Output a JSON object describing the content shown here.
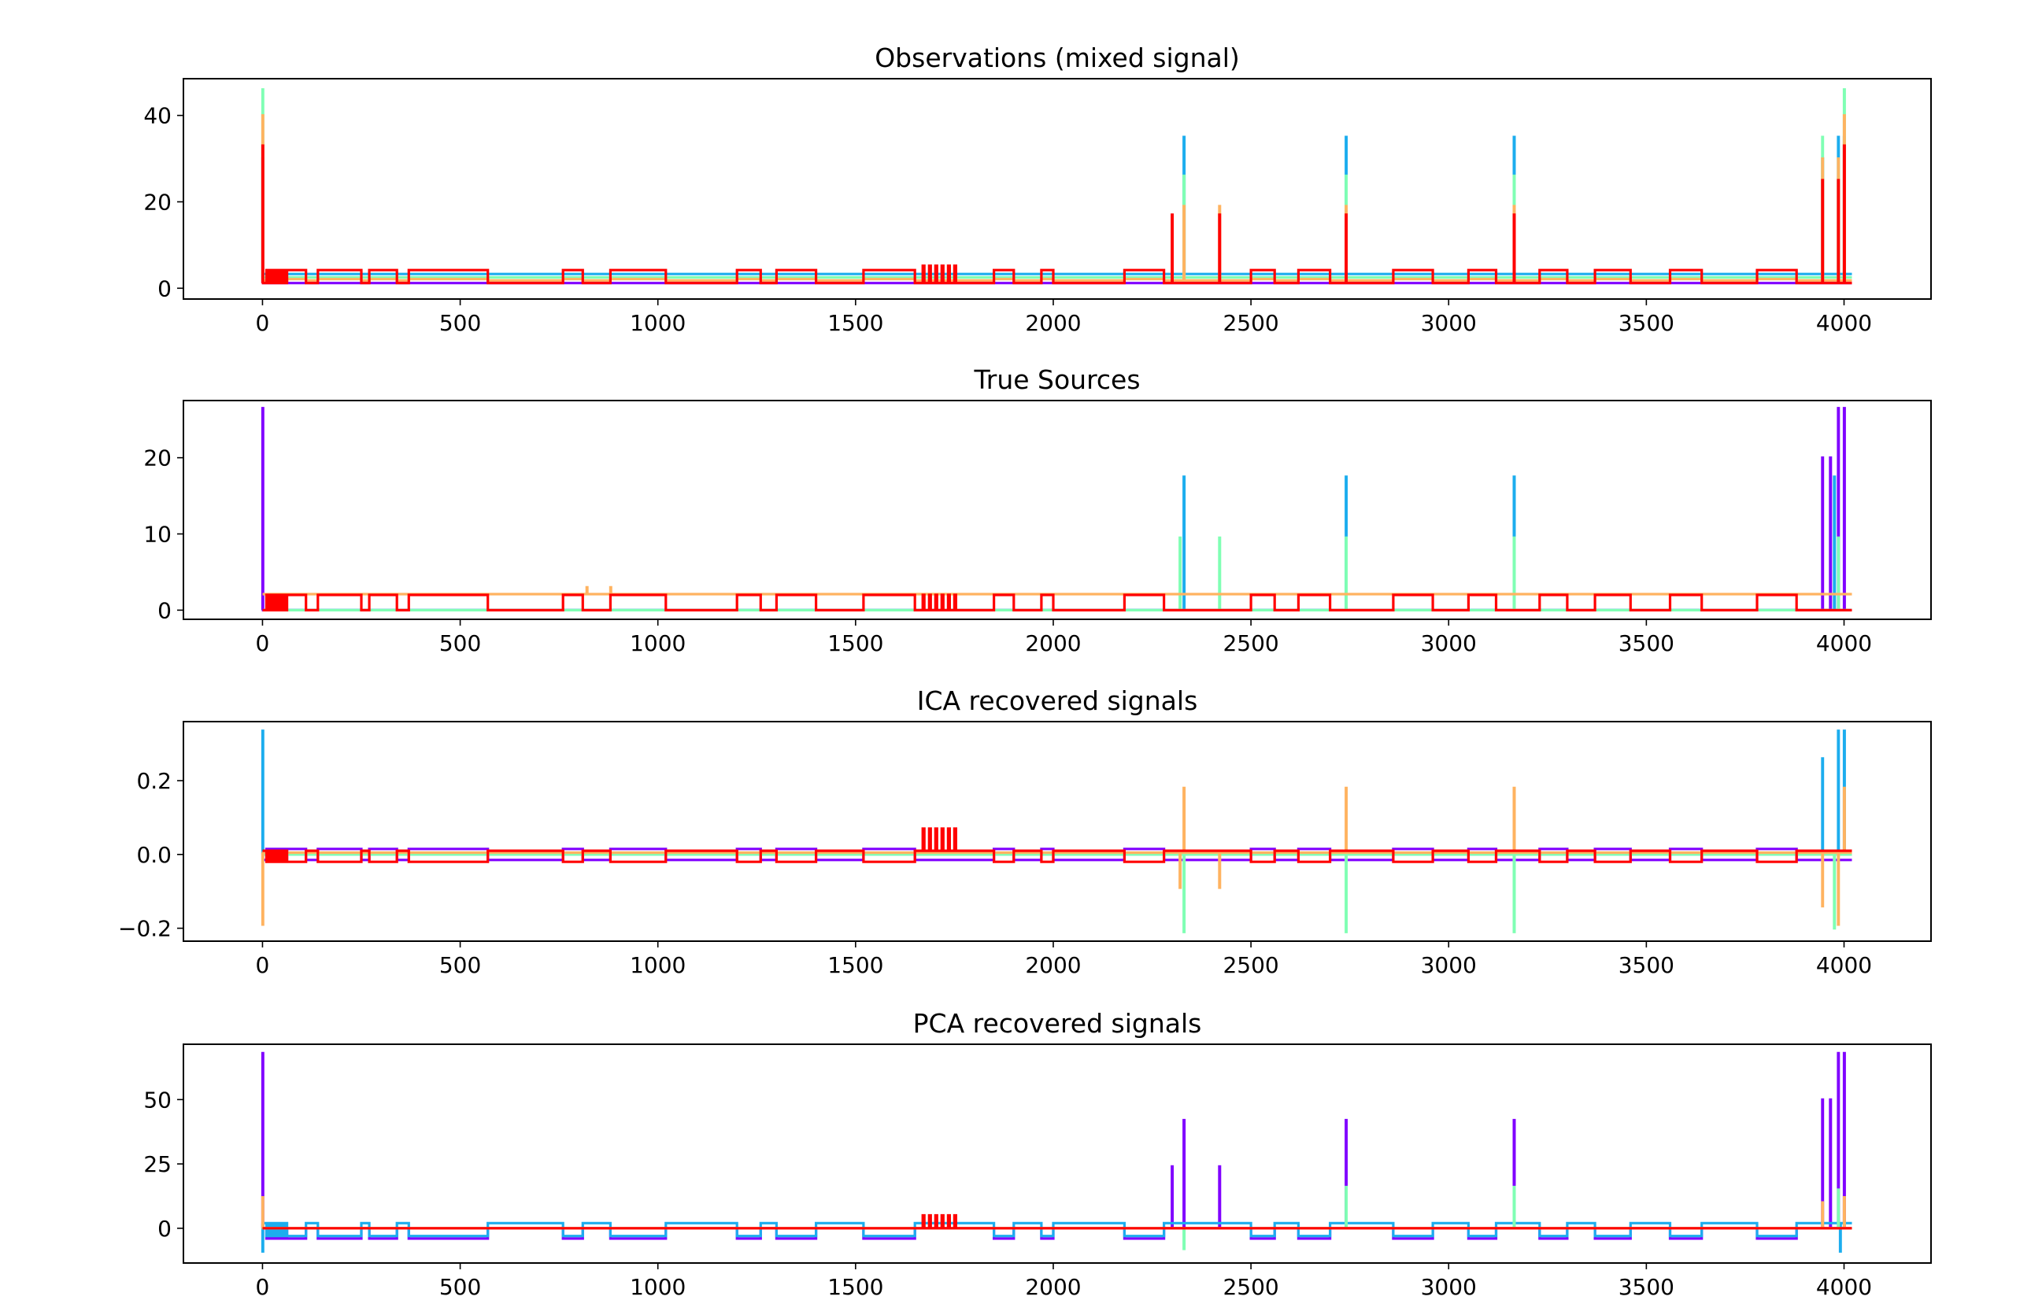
{
  "chart_data": [
    {
      "type": "line",
      "title": "Observations (mixed signal)",
      "xlim": [
        -200,
        4220
      ],
      "ylim": [
        -2.5,
        48.5
      ],
      "xticks": [
        0,
        500,
        1000,
        1500,
        2000,
        2500,
        3000,
        3500,
        4000
      ],
      "yticks": [
        0,
        20,
        40
      ],
      "ytick_labels": [
        "0",
        "20",
        "40"
      ],
      "series": [
        {
          "color": "#8000ff",
          "base": 1.2,
          "step": 0,
          "noise": 0,
          "spikes": [
            [
              0,
              3
            ],
            [
              2330,
              2
            ],
            [
              2740,
              2
            ],
            [
              3165,
              2
            ],
            [
              3945,
              3
            ],
            [
              3985,
              3
            ],
            [
              4000,
              3
            ]
          ]
        },
        {
          "color": "#1cadee",
          "base": 3.3,
          "step": 0,
          "noise": 0,
          "spikes": [
            [
              0,
              30
            ],
            [
              2330,
              35
            ],
            [
              2740,
              35
            ],
            [
              3165,
              35
            ],
            [
              3945,
              30
            ],
            [
              3985,
              35
            ],
            [
              4000,
              35
            ]
          ]
        },
        {
          "color": "#80ffb4",
          "base": 2.5,
          "step": 0,
          "noise": 0,
          "spikes": [
            [
              0,
              46
            ],
            [
              2330,
              26
            ],
            [
              2740,
              26
            ],
            [
              3165,
              26
            ],
            [
              3945,
              35
            ],
            [
              3985,
              30
            ],
            [
              4000,
              46
            ]
          ]
        },
        {
          "color": "#ffb360",
          "base": 1.8,
          "step": 0.3,
          "noise": 0,
          "spikes": [
            [
              0,
              40
            ],
            [
              2330,
              19
            ],
            [
              2420,
              19
            ],
            [
              2740,
              19
            ],
            [
              3165,
              19
            ],
            [
              3945,
              30
            ],
            [
              3985,
              30
            ],
            [
              4000,
              40
            ]
          ]
        },
        {
          "color": "#ff0000",
          "base": 1.2,
          "step": 3,
          "noise": 4,
          "spikes": [
            [
              0,
              33
            ],
            [
              2300,
              17
            ],
            [
              2420,
              17
            ],
            [
              2740,
              17
            ],
            [
              3165,
              17
            ],
            [
              3945,
              25
            ],
            [
              3985,
              25
            ],
            [
              4000,
              33
            ]
          ]
        }
      ]
    },
    {
      "type": "line",
      "title": "True Sources",
      "xlim": [
        -200,
        4220
      ],
      "ylim": [
        -1.2,
        27.5
      ],
      "xticks": [
        0,
        500,
        1000,
        1500,
        2000,
        2500,
        3000,
        3500,
        4000
      ],
      "yticks": [
        0,
        10,
        20
      ],
      "ytick_labels": [
        "0",
        "10",
        "20"
      ],
      "series": [
        {
          "color": "#8000ff",
          "base": 0,
          "step": 0,
          "noise": 0,
          "spikes": [
            [
              0,
              26.5
            ],
            [
              3945,
              20
            ],
            [
              3965,
              20
            ],
            [
              3985,
              26.5
            ],
            [
              4000,
              26.5
            ]
          ]
        },
        {
          "color": "#1cadee",
          "base": 0,
          "step": 0,
          "noise": 0,
          "spikes": [
            [
              2330,
              17.5
            ],
            [
              2740,
              17.5
            ],
            [
              3165,
              17.5
            ],
            [
              3975,
              17.5
            ]
          ]
        },
        {
          "color": "#80ffb4",
          "base": 0,
          "step": 0,
          "noise": 0,
          "spikes": [
            [
              2320,
              9.5
            ],
            [
              2420,
              9.5
            ],
            [
              2740,
              9.5
            ],
            [
              3165,
              9.5
            ],
            [
              3985,
              9.5
            ]
          ]
        },
        {
          "color": "#ffb360",
          "base": 2.1,
          "step": 0,
          "noise": 0,
          "spikes": [
            [
              820,
              3
            ],
            [
              880,
              3
            ]
          ]
        },
        {
          "color": "#ff0000",
          "base": 0,
          "step": 2,
          "noise": 2,
          "spikes": []
        }
      ]
    },
    {
      "type": "line",
      "title": "ICA recovered signals",
      "xlim": [
        -200,
        4220
      ],
      "ylim": [
        -0.235,
        0.36
      ],
      "xticks": [
        0,
        500,
        1000,
        1500,
        2000,
        2500,
        3000,
        3500,
        4000
      ],
      "yticks": [
        -0.2,
        0.0,
        0.2
      ],
      "ytick_labels": [
        "−0.2",
        "0.0",
        "0.2"
      ],
      "series": [
        {
          "color": "#8000ff",
          "base": -0.015,
          "step": 0.03,
          "noise": 0,
          "spikes": []
        },
        {
          "color": "#1cadee",
          "base": 0.0,
          "step": 0,
          "noise": 0,
          "spikes": [
            [
              0,
              0.335
            ],
            [
              3945,
              0.26
            ],
            [
              3985,
              0.335
            ],
            [
              4000,
              0.335
            ]
          ]
        },
        {
          "color": "#80ffb4",
          "base": 0.0,
          "step": 0,
          "noise": 0,
          "spikes": [
            [
              2330,
              -0.21
            ],
            [
              2740,
              -0.21
            ],
            [
              3165,
              -0.21
            ],
            [
              3975,
              -0.2
            ]
          ]
        },
        {
          "color": "#ffb360",
          "base": 0.005,
          "step": 0,
          "noise": 0,
          "spikes": [
            [
              0,
              -0.19
            ],
            [
              2320,
              -0.09
            ],
            [
              2330,
              0.18
            ],
            [
              2420,
              -0.09
            ],
            [
              2740,
              0.18
            ],
            [
              3165,
              0.18
            ],
            [
              3945,
              -0.14
            ],
            [
              3985,
              -0.19
            ],
            [
              4000,
              0.18
            ]
          ]
        },
        {
          "color": "#ff0000",
          "base": 0.01,
          "step": -0.03,
          "noise": 0.06,
          "spikes": []
        }
      ]
    },
    {
      "type": "line",
      "title": "PCA recovered signals",
      "xlim": [
        -200,
        4220
      ],
      "ylim": [
        -13.5,
        71.5
      ],
      "xticks": [
        0,
        500,
        1000,
        1500,
        2000,
        2500,
        3000,
        3500,
        4000
      ],
      "yticks": [
        0,
        25,
        50
      ],
      "ytick_labels": [
        "0",
        "25",
        "50"
      ],
      "series": [
        {
          "color": "#8000ff",
          "base": 0,
          "step": -4,
          "noise": 0,
          "spikes": [
            [
              0,
              68
            ],
            [
              2300,
              24
            ],
            [
              2330,
              42
            ],
            [
              2420,
              24
            ],
            [
              2740,
              42
            ],
            [
              3165,
              42
            ],
            [
              3945,
              50
            ],
            [
              3965,
              50
            ],
            [
              3985,
              68
            ],
            [
              4000,
              68
            ]
          ]
        },
        {
          "color": "#1cadee",
          "base": 2,
          "step": -5,
          "noise": 0,
          "spikes": [
            [
              0,
              -9
            ],
            [
              3990,
              -9
            ]
          ]
        },
        {
          "color": "#80ffb4",
          "base": 0,
          "step": 0,
          "noise": 0,
          "spikes": [
            [
              2330,
              -8
            ],
            [
              2740,
              16
            ],
            [
              3165,
              16
            ],
            [
              3985,
              15
            ]
          ]
        },
        {
          "color": "#ffb360",
          "base": 0,
          "step": 0,
          "noise": 0,
          "spikes": [
            [
              0,
              12
            ],
            [
              3945,
              10
            ],
            [
              4000,
              12
            ]
          ]
        },
        {
          "color": "#ff0000",
          "base": 0,
          "step": 0,
          "noise": 5,
          "spikes": []
        }
      ]
    }
  ]
}
